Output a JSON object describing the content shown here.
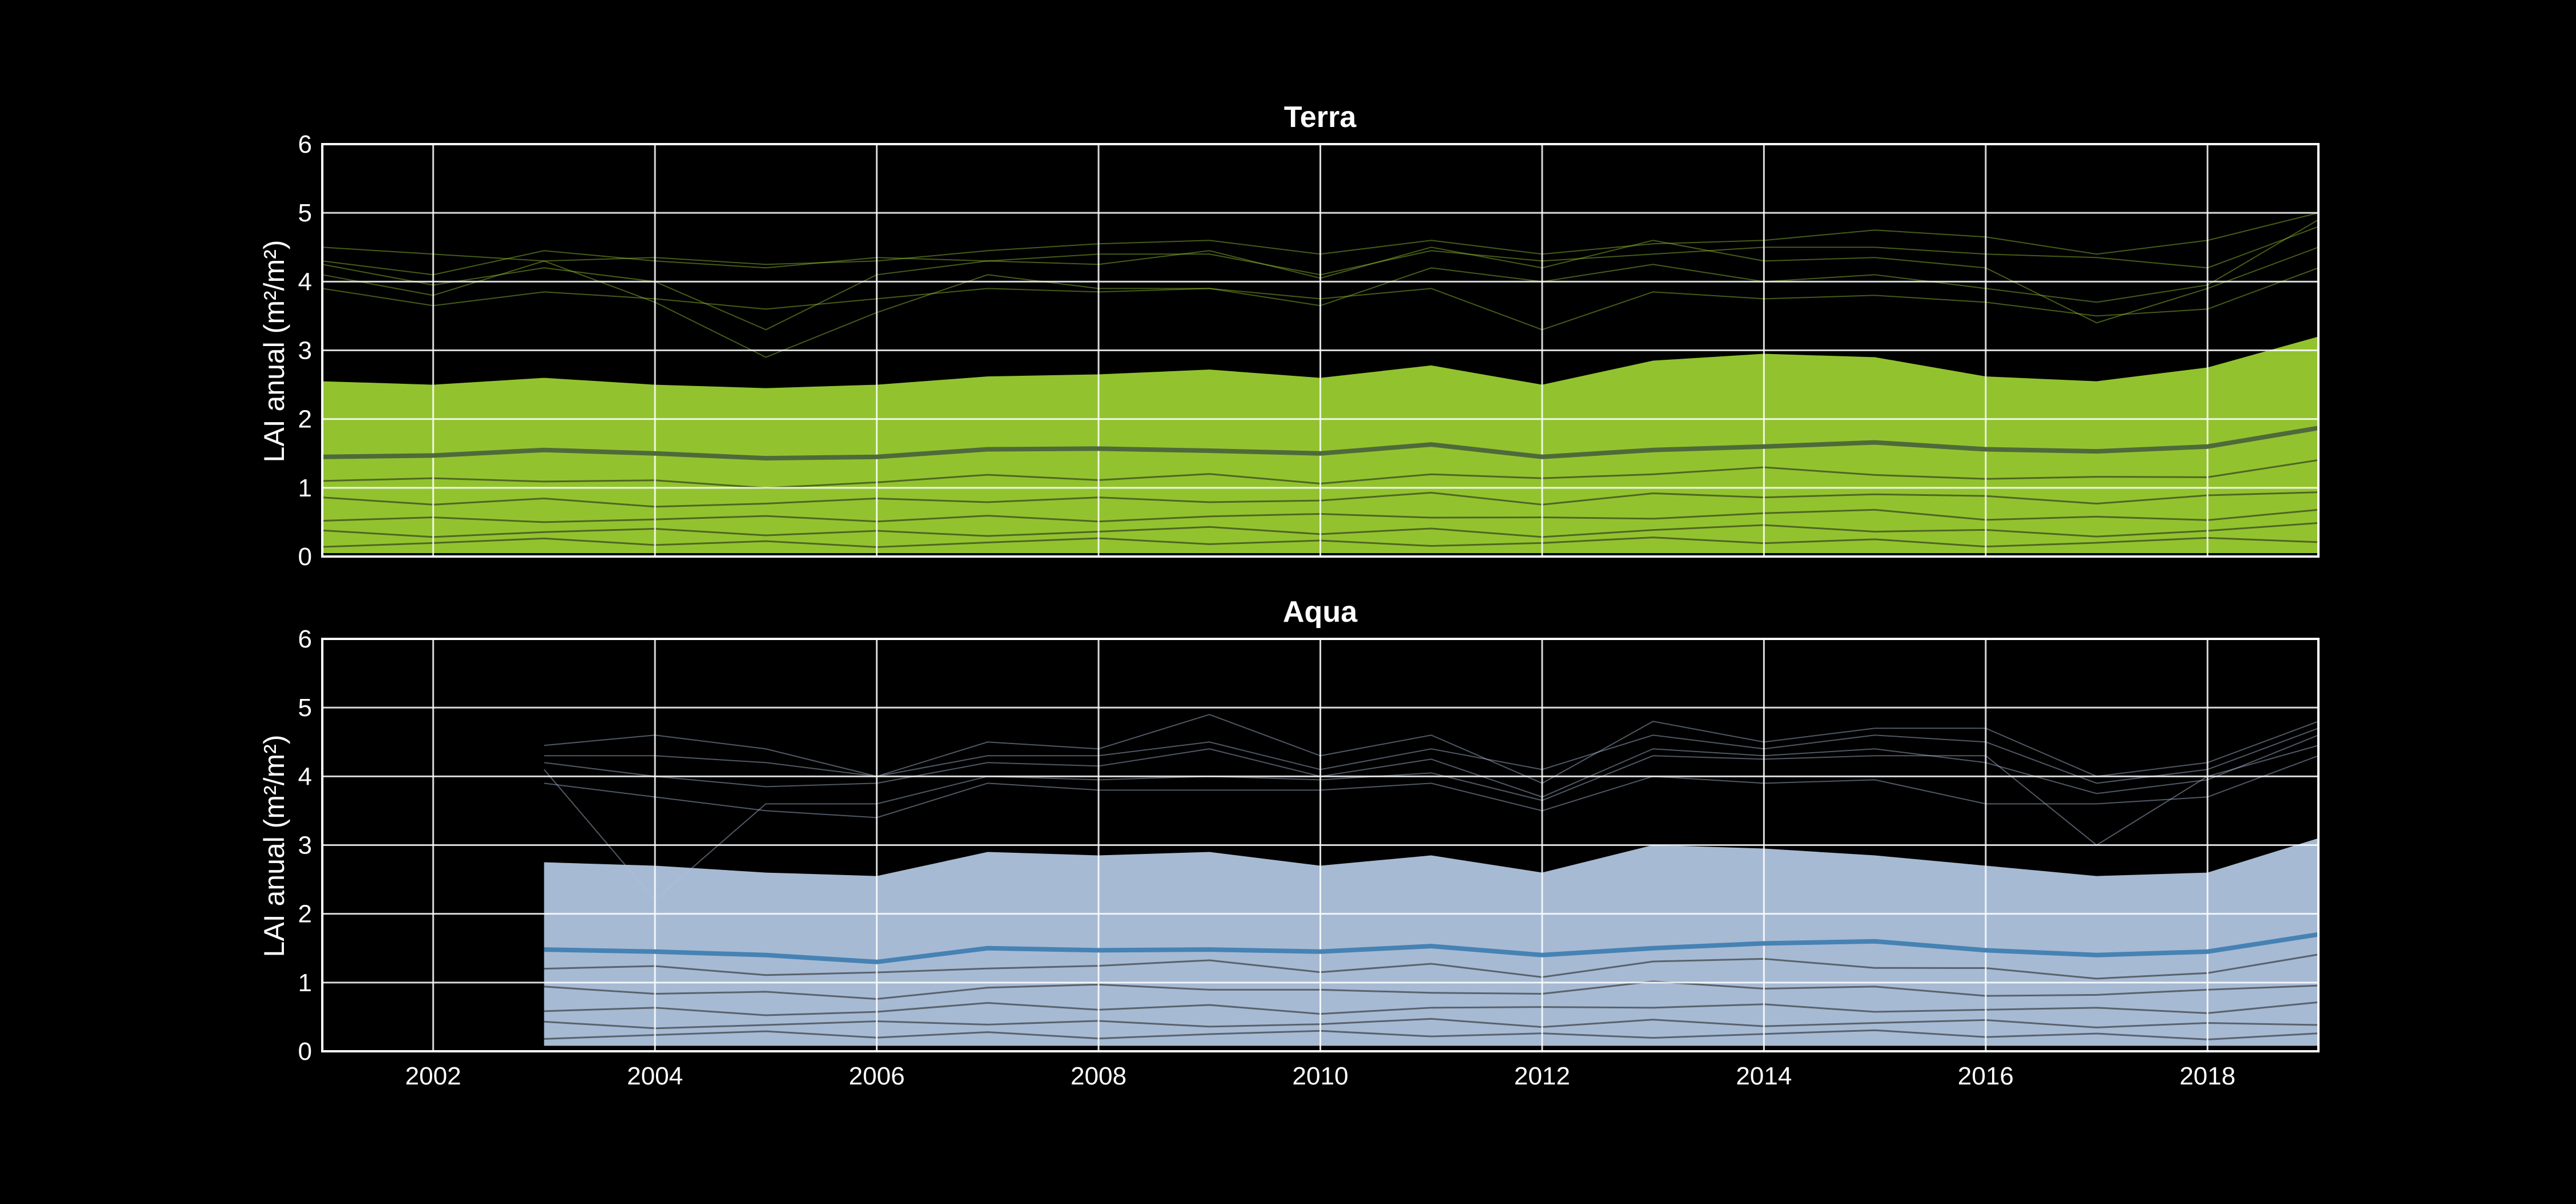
{
  "colors": {
    "background": "#000000",
    "axes": "#ffffff",
    "grid": "#ffffff",
    "terra_band": "#9acd32",
    "aqua_band": "#b0c4de",
    "terra_mean": "#4f6a3a",
    "aqua_mean": "#4682b4"
  },
  "chart_data": [
    {
      "type": "line",
      "title": "Terra",
      "ylabel": "LAI anual (m²/m²)",
      "xlabel": "",
      "xlim": [
        2001,
        2019
      ],
      "ylim": [
        0,
        6
      ],
      "x_ticks": [
        2002,
        2004,
        2006,
        2008,
        2010,
        2012,
        2014,
        2016,
        2018
      ],
      "y_ticks": [
        0,
        1,
        2,
        3,
        4,
        5,
        6
      ],
      "grid": true,
      "x_tick_labels_visible": false,
      "x": [
        2001,
        2002,
        2003,
        2004,
        2005,
        2006,
        2007,
        2008,
        2009,
        2010,
        2011,
        2012,
        2013,
        2014,
        2015,
        2016,
        2017,
        2018,
        2019
      ],
      "mean_series": {
        "values": [
          1.45,
          1.47,
          1.55,
          1.5,
          1.43,
          1.45,
          1.56,
          1.57,
          1.54,
          1.5,
          1.63,
          1.45,
          1.55,
          1.6,
          1.66,
          1.56,
          1.53,
          1.6,
          1.87
        ]
      },
      "band": {
        "lower": [
          0.05,
          0.05,
          0.05,
          0.05,
          0.05,
          0.05,
          0.05,
          0.05,
          0.05,
          0.05,
          0.05,
          0.05,
          0.05,
          0.05,
          0.05,
          0.05,
          0.05,
          0.05,
          0.05
        ],
        "upper": [
          2.55,
          2.5,
          2.6,
          2.5,
          2.45,
          2.5,
          2.62,
          2.65,
          2.72,
          2.6,
          2.78,
          2.5,
          2.85,
          2.95,
          2.9,
          2.62,
          2.55,
          2.75,
          3.2
        ]
      },
      "high_series": [
        {
          "values": [
            4.5,
            4.4,
            4.3,
            4.35,
            4.25,
            4.3,
            4.45,
            4.55,
            4.6,
            4.4,
            4.6,
            4.4,
            4.55,
            4.6,
            4.75,
            4.65,
            4.4,
            4.6,
            5.0
          ]
        },
        {
          "values": [
            4.3,
            4.1,
            4.45,
            4.3,
            4.2,
            4.35,
            4.3,
            4.4,
            4.4,
            4.1,
            4.45,
            4.3,
            4.4,
            4.5,
            4.5,
            4.4,
            4.35,
            4.2,
            4.8
          ]
        },
        {
          "values": [
            4.25,
            3.95,
            4.2,
            4.0,
            3.3,
            4.1,
            4.3,
            4.25,
            4.45,
            4.05,
            4.5,
            4.2,
            4.6,
            4.3,
            4.35,
            4.2,
            3.4,
            3.9,
            4.5
          ]
        },
        {
          "values": [
            3.9,
            3.65,
            3.85,
            3.75,
            3.6,
            3.75,
            3.9,
            3.85,
            3.9,
            3.75,
            3.9,
            3.3,
            3.85,
            3.75,
            3.8,
            3.7,
            3.5,
            3.6,
            4.2
          ]
        },
        {
          "values": [
            4.1,
            3.8,
            4.3,
            3.7,
            2.9,
            3.55,
            4.1,
            3.9,
            3.9,
            3.65,
            4.2,
            4.0,
            4.25,
            4.0,
            4.1,
            3.9,
            3.7,
            3.95,
            4.9
          ]
        }
      ]
    },
    {
      "type": "line",
      "title": "Aqua",
      "ylabel": "LAI anual (m²/m²)",
      "xlabel": "",
      "xlim": [
        2001,
        2019
      ],
      "ylim": [
        0,
        6
      ],
      "x_ticks": [
        2002,
        2004,
        2006,
        2008,
        2010,
        2012,
        2014,
        2016,
        2018
      ],
      "y_ticks": [
        0,
        1,
        2,
        3,
        4,
        5,
        6
      ],
      "grid": true,
      "x_tick_labels_visible": true,
      "x": [
        2003,
        2004,
        2005,
        2006,
        2007,
        2008,
        2009,
        2010,
        2011,
        2012,
        2013,
        2014,
        2015,
        2016,
        2017,
        2018,
        2019
      ],
      "mean_series": {
        "values": [
          1.48,
          1.45,
          1.4,
          1.3,
          1.5,
          1.47,
          1.48,
          1.45,
          1.53,
          1.4,
          1.5,
          1.57,
          1.6,
          1.47,
          1.4,
          1.45,
          1.7
        ]
      },
      "band": {
        "lower": [
          0.08,
          0.08,
          0.08,
          0.08,
          0.08,
          0.08,
          0.08,
          0.08,
          0.08,
          0.08,
          0.08,
          0.08,
          0.08,
          0.08,
          0.08,
          0.08,
          0.08
        ],
        "upper": [
          2.75,
          2.7,
          2.6,
          2.55,
          2.9,
          2.85,
          2.9,
          2.7,
          2.85,
          2.6,
          3.0,
          2.95,
          2.85,
          2.7,
          2.55,
          2.6,
          3.1
        ]
      },
      "high_series": [
        {
          "values": [
            4.45,
            4.6,
            4.4,
            4.0,
            4.5,
            4.4,
            4.9,
            4.3,
            4.6,
            3.9,
            4.8,
            4.5,
            4.7,
            4.7,
            4.0,
            4.2,
            4.8
          ]
        },
        {
          "values": [
            4.3,
            4.3,
            4.2,
            4.0,
            4.3,
            4.3,
            4.5,
            4.1,
            4.4,
            4.1,
            4.6,
            4.4,
            4.6,
            4.5,
            3.9,
            4.1,
            4.7
          ]
        },
        {
          "values": [
            4.2,
            4.0,
            3.85,
            3.9,
            4.2,
            4.15,
            4.4,
            4.0,
            4.25,
            3.7,
            4.4,
            4.3,
            4.4,
            4.2,
            3.75,
            3.95,
            4.6
          ]
        },
        {
          "values": [
            3.9,
            3.7,
            3.5,
            3.4,
            3.9,
            3.8,
            3.8,
            3.8,
            3.9,
            3.5,
            4.0,
            3.9,
            3.95,
            3.6,
            3.6,
            3.7,
            4.3
          ]
        },
        {
          "values": [
            4.1,
            2.2,
            3.6,
            3.6,
            4.0,
            3.95,
            4.0,
            3.95,
            4.05,
            3.65,
            4.3,
            4.25,
            4.3,
            4.3,
            3.0,
            4.0,
            4.45
          ]
        }
      ]
    }
  ]
}
